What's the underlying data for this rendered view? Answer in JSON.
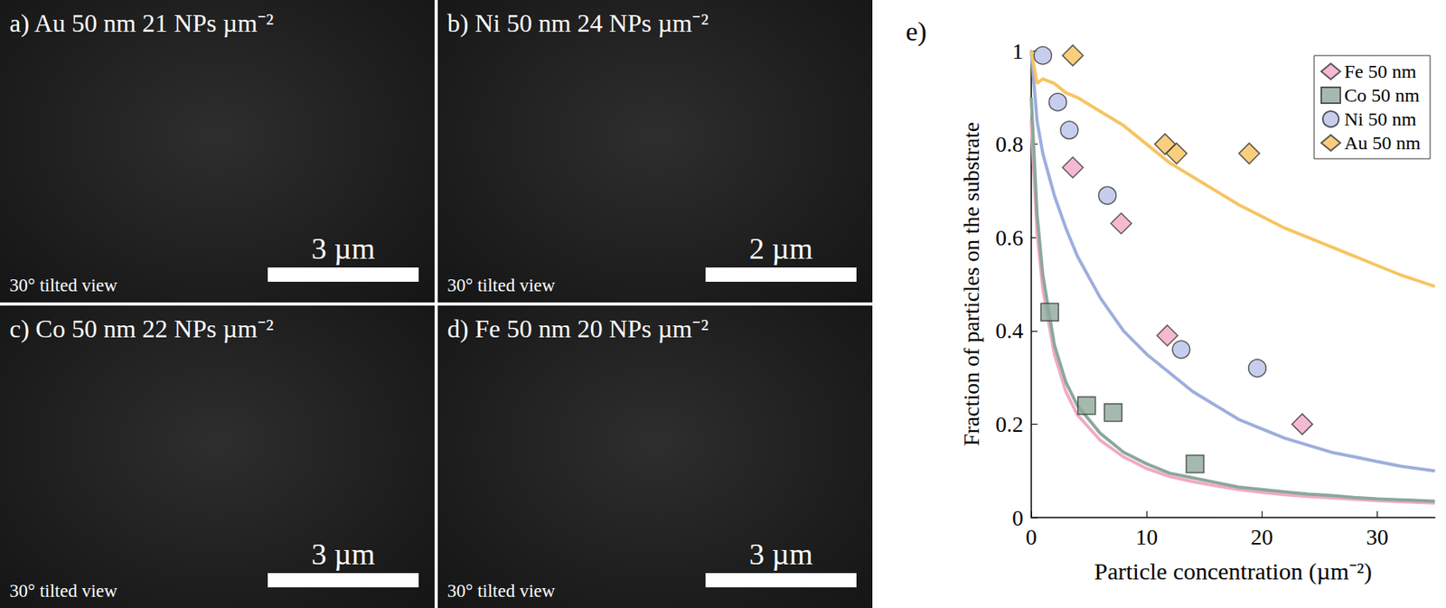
{
  "images": [
    {
      "label": "a)",
      "title": "Au 50 nm 21 NPs µm⁻²",
      "scale_bar": "3 µm",
      "view": "30° tilted view"
    },
    {
      "label": "b)",
      "title": "Ni 50 nm 24 NPs µm⁻²",
      "scale_bar": "2 µm",
      "view": "30° tilted view"
    },
    {
      "label": "c)",
      "title": "Co 50 nm 22 NPs µm⁻²",
      "scale_bar": "3 µm",
      "view": "30° tilted view"
    },
    {
      "label": "d)",
      "title": "Fe 50 nm 20 NPs µm⁻²",
      "scale_bar": "3 µm",
      "view": "30° tilted view"
    }
  ],
  "chart_data": {
    "type": "scatter",
    "label": "e)",
    "xlabel": "Particle concentration (µm⁻²)",
    "ylabel": "Fraction of particles on the substrate",
    "xlim": [
      0,
      35
    ],
    "xticks": [
      0,
      10,
      20,
      30
    ],
    "ylim": [
      0,
      1
    ],
    "yticks": [
      0,
      0.2,
      0.4,
      0.6,
      0.8,
      1
    ],
    "grid": false,
    "legend": "upper right",
    "series": [
      {
        "name": "Fe 50 nm",
        "type": "scatter",
        "marker": "diamond",
        "color": "#f4a7c8",
        "x": [
          3.6,
          7.8,
          11.8,
          23.5
        ],
        "values": [
          0.75,
          0.63,
          0.39,
          0.2
        ]
      },
      {
        "name": "Co 50 nm",
        "type": "scatter",
        "marker": "square",
        "color": "#8fa99b",
        "x": [
          1.6,
          4.8,
          7.1,
          14.2
        ],
        "values": [
          0.44,
          0.24,
          0.225,
          0.115
        ]
      },
      {
        "name": "Ni 50 nm",
        "type": "scatter",
        "marker": "circle",
        "color": "#b9c2e8",
        "x": [
          1.0,
          2.3,
          3.3,
          6.6,
          13.0,
          19.6
        ],
        "values": [
          0.99,
          0.89,
          0.83,
          0.69,
          0.36,
          0.32
        ]
      },
      {
        "name": "Au 50 nm",
        "type": "scatter",
        "marker": "diamond",
        "color": "#f8c25c",
        "x": [
          3.6,
          11.6,
          12.6,
          18.9
        ],
        "values": [
          0.99,
          0.8,
          0.78,
          0.78
        ]
      },
      {
        "name": "Fe 50 nm",
        "type": "line",
        "line_style": "solid",
        "color": "#f2a9c6",
        "x": [
          0,
          0.5,
          1,
          2,
          3,
          4,
          6,
          8,
          10,
          12,
          14,
          16,
          18,
          20,
          22,
          24,
          26,
          28,
          30,
          32,
          35
        ],
        "values": [
          0.85,
          0.61,
          0.49,
          0.35,
          0.27,
          0.22,
          0.165,
          0.13,
          0.105,
          0.088,
          0.077,
          0.068,
          0.06,
          0.054,
          0.049,
          0.045,
          0.042,
          0.039,
          0.036,
          0.034,
          0.031
        ]
      },
      {
        "name": "Co 50 nm",
        "type": "line",
        "line_style": "solid",
        "color": "#8ba89a",
        "x": [
          0,
          0.5,
          1,
          2,
          3,
          4,
          6,
          8,
          10,
          12,
          14,
          16,
          18,
          20,
          22,
          24,
          26,
          28,
          30,
          32,
          35
        ],
        "values": [
          0.9,
          0.65,
          0.52,
          0.37,
          0.29,
          0.24,
          0.18,
          0.14,
          0.115,
          0.095,
          0.085,
          0.075,
          0.065,
          0.06,
          0.055,
          0.05,
          0.047,
          0.043,
          0.04,
          0.038,
          0.035
        ]
      },
      {
        "name": "Ni 50 nm",
        "type": "line",
        "line_style": "solid",
        "color": "#9daedc",
        "x": [
          0,
          0.5,
          1,
          2,
          3,
          4,
          6,
          8,
          10,
          12,
          14,
          16,
          18,
          20,
          22,
          24,
          26,
          28,
          30,
          32,
          35
        ],
        "values": [
          1.0,
          0.85,
          0.78,
          0.69,
          0.62,
          0.56,
          0.47,
          0.4,
          0.35,
          0.31,
          0.27,
          0.24,
          0.21,
          0.19,
          0.17,
          0.155,
          0.14,
          0.13,
          0.12,
          0.11,
          0.1
        ]
      },
      {
        "name": "Au 50 nm",
        "type": "line",
        "line_style": "solid",
        "color": "#f7c462",
        "x": [
          0,
          0.5,
          1,
          2,
          3,
          4,
          6,
          8,
          10,
          12,
          14,
          16,
          18,
          20,
          22,
          24,
          26,
          28,
          30,
          32,
          35
        ],
        "values": [
          1.0,
          0.93,
          0.94,
          0.93,
          0.91,
          0.9,
          0.87,
          0.84,
          0.8,
          0.76,
          0.73,
          0.7,
          0.67,
          0.645,
          0.62,
          0.6,
          0.58,
          0.56,
          0.54,
          0.52,
          0.495
        ]
      }
    ]
  }
}
